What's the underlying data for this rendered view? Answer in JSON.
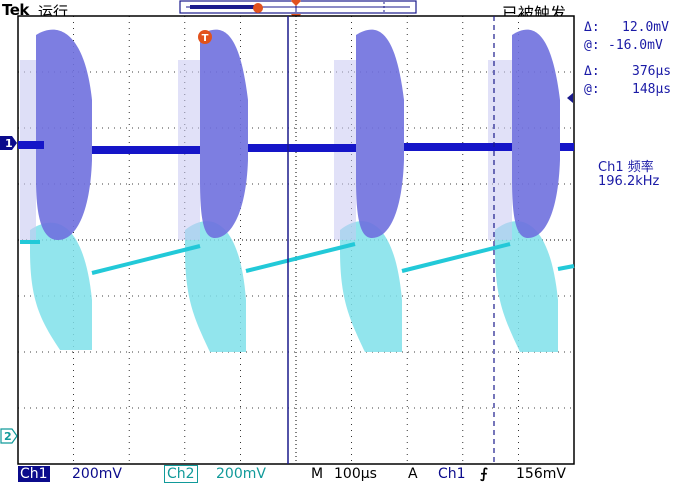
{
  "header": {
    "brand": "Tek",
    "run_state": "运行",
    "trigger_state": "已被触发"
  },
  "markers": {
    "trigger_marker": "T",
    "ch1_marker": "1",
    "ch2_marker": "2"
  },
  "cursors": {
    "amp_delta_label": "Δ:",
    "amp_delta_value": "12.0mV",
    "amp_at_label": "@:",
    "amp_at_value": "-16.0mV",
    "time_delta_label": "Δ:",
    "time_delta_value": "376μs",
    "time_at_label": "@:",
    "time_at_value": "148μs"
  },
  "measurement": {
    "label": "Ch1 频率",
    "value": "196.2kHz"
  },
  "status_bar": {
    "ch1_label": "Ch1",
    "ch1_scale": "200mV",
    "ch2_label": "Ch2",
    "ch2_scale": "200mV",
    "timebase_label": "M",
    "timebase_value": "100μs",
    "trigger_label": "A",
    "trigger_source": "Ch1",
    "trigger_slope": "⨍",
    "trigger_level": "156mV"
  },
  "colors": {
    "ch1": "#1515c8",
    "ch1_envelope": "#6f70de",
    "ch2": "#22c9d8",
    "ch2_envelope": "#7fe0ea",
    "grid": "#000000",
    "cursor": "#1a1a8c",
    "trigger_marker": "#e2521d"
  }
}
